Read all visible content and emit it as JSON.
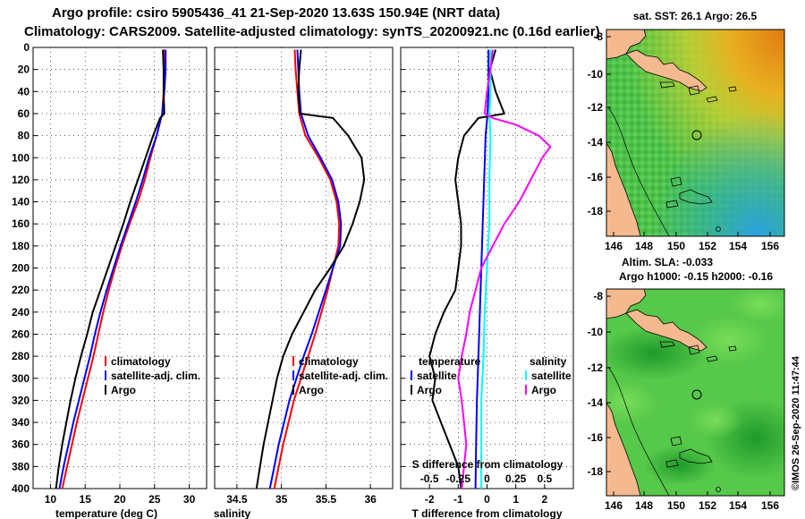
{
  "header": {
    "title_line1": "Argo profile: csiro 5905436_41 21-Sep-2020 13.63S 150.94E (NRT data)",
    "title_line2": "Climatology: CARS2009. Satellite-adjusted climatology: synTS_20200921.nc (0.16d earlier)"
  },
  "colors": {
    "climatology": "#ff0000",
    "satellite": "#0000ff",
    "argo": "#000000",
    "sat_cyan": "#00ffff",
    "argo_magenta": "#ff00ff",
    "land": "#f4b98e"
  },
  "depth_ticks": [
    0,
    20,
    40,
    60,
    80,
    100,
    120,
    140,
    160,
    180,
    200,
    220,
    240,
    260,
    280,
    300,
    320,
    340,
    360,
    380,
    400
  ],
  "chart_data": [
    {
      "type": "line",
      "name": "temperature",
      "xlabel": "temperature (deg C)",
      "ylabel": "depth",
      "xlim": [
        7.5,
        32.5
      ],
      "ylim": [
        400,
        0
      ],
      "xticks": [
        10,
        15,
        20,
        25,
        30
      ],
      "legend": [
        "climatology",
        "satellite-adj. clim.",
        "Argo"
      ],
      "series": [
        {
          "name": "climatology",
          "color": "#ff0000",
          "depth": [
            2,
            20,
            40,
            60,
            80,
            100,
            120,
            140,
            160,
            180,
            200,
            220,
            240,
            260,
            280,
            300,
            320,
            340,
            360,
            380,
            400
          ],
          "values": [
            26.4,
            26.4,
            26.3,
            26.1,
            25.3,
            24.4,
            23.6,
            22.6,
            21.4,
            20.3,
            19.3,
            18.4,
            17.6,
            16.9,
            16.2,
            15.4,
            14.6,
            13.8,
            13.1,
            12.4,
            11.7
          ]
        },
        {
          "name": "satellite-adj. clim.",
          "color": "#0000ff",
          "depth": [
            2,
            20,
            40,
            60,
            80,
            100,
            120,
            140,
            160,
            180,
            200,
            220,
            240,
            260,
            280,
            300,
            320,
            340,
            360,
            380,
            400
          ],
          "values": [
            26.6,
            26.6,
            26.4,
            26.1,
            25.3,
            24.2,
            23.3,
            22.3,
            21.2,
            20.1,
            19.1,
            18.1,
            17.2,
            16.4,
            15.7,
            14.9,
            14.1,
            13.3,
            12.6,
            11.9,
            11.3
          ]
        },
        {
          "name": "Argo",
          "color": "#000000",
          "depth": [
            2,
            20,
            40,
            60,
            64,
            80,
            100,
            120,
            140,
            160,
            180,
            200,
            220,
            240,
            260,
            280,
            300,
            320,
            340,
            360,
            380,
            400
          ],
          "values": [
            26.2,
            26.3,
            26.3,
            26.4,
            25.8,
            24.8,
            23.7,
            22.6,
            21.5,
            20.5,
            19.4,
            18.3,
            17.2,
            16.1,
            15.3,
            14.4,
            13.6,
            12.9,
            12.3,
            11.7,
            11.2,
            10.8
          ]
        }
      ]
    },
    {
      "type": "line",
      "name": "salinity",
      "xlabel": "salinity",
      "ylabel": "depth",
      "xlim": [
        34.25,
        36.25
      ],
      "ylim": [
        400,
        0
      ],
      "xticks": [
        34.5,
        35,
        35.5,
        36
      ],
      "legend": [
        "climatology",
        "satellite-adj. clim.",
        "Argo"
      ],
      "series": [
        {
          "name": "climatology",
          "color": "#ff0000",
          "depth": [
            2,
            20,
            40,
            60,
            80,
            100,
            120,
            140,
            160,
            180,
            200,
            220,
            240,
            260,
            280,
            300,
            320,
            340,
            360,
            380,
            400
          ],
          "values": [
            35.15,
            35.16,
            35.18,
            35.2,
            35.27,
            35.42,
            35.55,
            35.62,
            35.65,
            35.64,
            35.58,
            35.52,
            35.45,
            35.38,
            35.3,
            35.22,
            35.14,
            35.08,
            35.02,
            34.97,
            34.92
          ]
        },
        {
          "name": "satellite-adj. clim.",
          "color": "#0000ff",
          "depth": [
            2,
            20,
            40,
            60,
            80,
            100,
            120,
            140,
            160,
            180,
            200,
            220,
            240,
            260,
            280,
            300,
            320,
            340,
            360,
            380,
            400
          ],
          "values": [
            35.18,
            35.19,
            35.2,
            35.22,
            35.3,
            35.44,
            35.57,
            35.64,
            35.67,
            35.66,
            35.58,
            35.5,
            35.42,
            35.34,
            35.25,
            35.17,
            35.09,
            35.03,
            34.97,
            34.92,
            34.87
          ]
        },
        {
          "name": "Argo",
          "color": "#000000",
          "depth": [
            2,
            20,
            40,
            60,
            64,
            80,
            100,
            120,
            140,
            160,
            180,
            200,
            220,
            240,
            260,
            280,
            300,
            320,
            340,
            360,
            380,
            400
          ],
          "values": [
            35.22,
            35.2,
            35.19,
            35.21,
            35.58,
            35.75,
            35.9,
            35.93,
            35.88,
            35.8,
            35.7,
            35.55,
            35.38,
            35.25,
            35.12,
            35.02,
            34.95,
            34.9,
            34.85,
            34.8,
            34.76,
            34.72
          ]
        }
      ]
    },
    {
      "type": "line",
      "name": "difference from climatology",
      "xlabel": "T difference from climatology",
      "x2label": "S difference from climatology",
      "ylabel": "depth",
      "xlim": [
        -3,
        3
      ],
      "x2lim": [
        -0.75,
        0.75
      ],
      "ylim": [
        400,
        0
      ],
      "xticks": [
        -2,
        -1,
        0,
        1,
        2
      ],
      "x2ticks": [
        -0.5,
        -0.25,
        0,
        0.25,
        0.5
      ],
      "legend_temperature_title": "temperature",
      "legend_salinity_title": "salinity",
      "legend": [
        "satellite",
        "Argo",
        "satellite",
        "Argo"
      ],
      "series": [
        {
          "name": "temperature satellite",
          "axis": "T",
          "color": "#0000ff",
          "depth": [
            2,
            40,
            60,
            80,
            120,
            160,
            200,
            240,
            280,
            320,
            360,
            400
          ],
          "values": [
            0.05,
            0.05,
            0.02,
            -0.05,
            -0.1,
            -0.15,
            -0.2,
            -0.25,
            -0.3,
            -0.35,
            -0.38,
            -0.4
          ]
        },
        {
          "name": "temperature Argo",
          "axis": "T",
          "color": "#000000",
          "depth": [
            2,
            20,
            40,
            60,
            64,
            80,
            100,
            120,
            140,
            160,
            180,
            200,
            220,
            240,
            260,
            280,
            300,
            320,
            340,
            360,
            380,
            400
          ],
          "values": [
            0.3,
            0.1,
            0.3,
            0.6,
            -0.3,
            -0.8,
            -1.0,
            -1.1,
            -1.0,
            -0.9,
            -0.9,
            -1.0,
            -1.1,
            -1.5,
            -1.8,
            -2.0,
            -1.8,
            -1.9,
            -1.6,
            -1.3,
            -1.0,
            -0.9
          ]
        },
        {
          "name": "salinity satellite",
          "axis": "S",
          "color": "#00ffff",
          "depth": [
            2,
            40,
            60,
            80,
            120,
            160,
            200,
            240,
            280,
            320,
            360,
            400
          ],
          "values": [
            0.03,
            0.03,
            0.02,
            0.03,
            0.02,
            0.02,
            0.0,
            -0.02,
            -0.03,
            -0.05,
            -0.05,
            -0.05
          ]
        },
        {
          "name": "salinity Argo",
          "axis": "S",
          "color": "#ff00ff",
          "depth": [
            2,
            20,
            40,
            60,
            64,
            70,
            80,
            90,
            100,
            120,
            140,
            160,
            180,
            200,
            220,
            240,
            260,
            280,
            300,
            320,
            340,
            360,
            380,
            400
          ],
          "values": [
            0.05,
            0.03,
            0.0,
            -0.02,
            0.05,
            0.25,
            0.45,
            0.55,
            0.48,
            0.38,
            0.28,
            0.15,
            0.05,
            -0.05,
            -0.1,
            -0.15,
            -0.18,
            -0.22,
            -0.25,
            -0.22,
            -0.2,
            -0.18,
            -0.2,
            -0.22
          ]
        }
      ]
    }
  ],
  "maps": [
    {
      "name": "sst-map",
      "title": "sat. SST: 26.1 Argo: 26.5",
      "xticks": [
        "146",
        "148",
        "150",
        "152",
        "154",
        "156"
      ],
      "yticks": [
        "-8",
        "-10",
        "-12",
        "-14",
        "-16",
        "-18"
      ]
    },
    {
      "name": "sla-map",
      "title_line1": "Altim. SLA: -0.033",
      "title_line2": "Argo h1000: -0.15 h2000: -0.16",
      "xticks": [
        "146",
        "148",
        "150",
        "152",
        "154",
        "156"
      ],
      "yticks": [
        "-8",
        "-10",
        "-12",
        "-14",
        "-16",
        "-18"
      ]
    }
  ],
  "footer": {
    "credit": "©IMOS 26-Sep-2020 11:47:44"
  }
}
